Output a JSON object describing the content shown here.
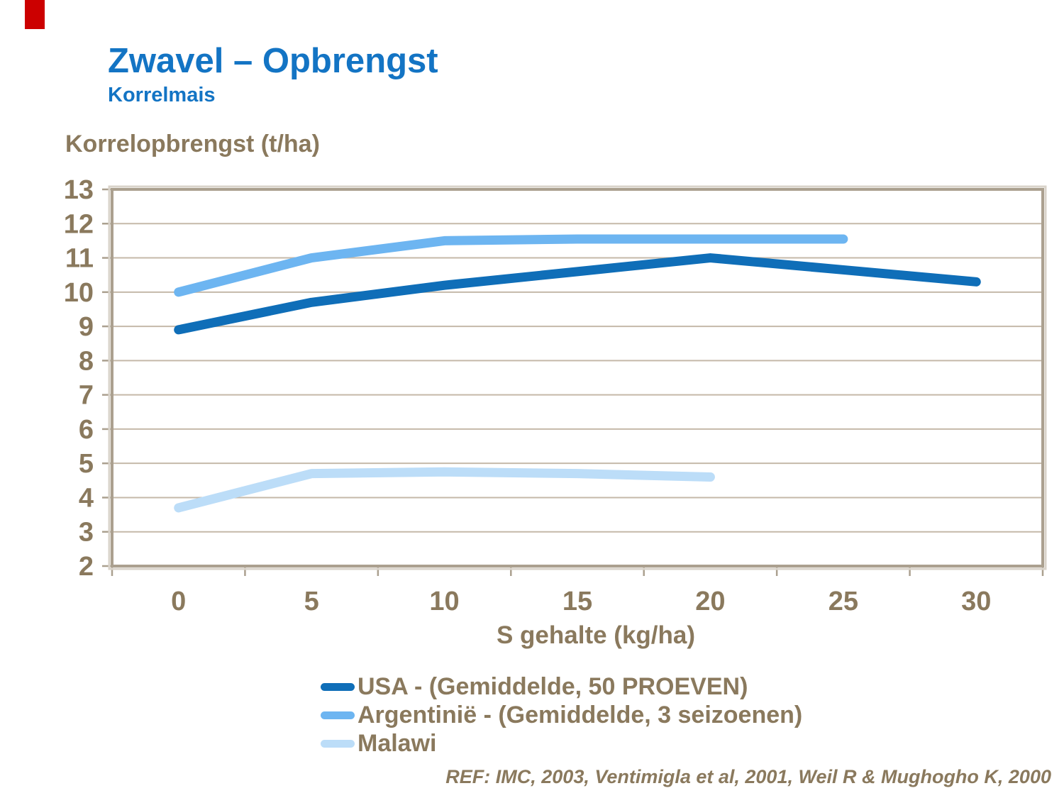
{
  "slide": {
    "title": "Zwavel – Opbrengst",
    "subtitle": "Korrelmais",
    "reference": "REF: IMC, 2003, Ventimigla et al, 2001, Weil R & Mughogho K, 2000",
    "logo_color": "#cc0000",
    "title_color": "#1374c4",
    "text_color": "#8a795d"
  },
  "chart_data": {
    "type": "line",
    "title": "",
    "y_axis_title": "Korrelopbrengst (t/ha)",
    "x_axis_title": "S gehalte (kg/ha)",
    "xlabel": "S gehalte (kg/ha)",
    "ylabel": "Korrelopbrengst (t/ha)",
    "xticks": [
      0,
      5,
      10,
      15,
      20,
      25,
      30
    ],
    "yticks": [
      2,
      3,
      4,
      5,
      6,
      7,
      8,
      9,
      10,
      11,
      12,
      13
    ],
    "ylim": [
      2,
      13
    ],
    "grid": "horizontal",
    "legend_position": "bottom",
    "axis_color": "#aba08f",
    "axis_outer_color": "#d9d3ca",
    "gridline_color": "#c5b9a9",
    "series": [
      {
        "name": "USA - (Gemiddelde, 50 PROEVEN)",
        "color": "#0f6eb8",
        "x": [
          0,
          5,
          10,
          15,
          20,
          25,
          30
        ],
        "values": [
          8.9,
          9.7,
          10.2,
          10.6,
          11.0,
          10.65,
          10.3
        ]
      },
      {
        "name": "Argentinië - (Gemiddelde, 3 seizoenen)",
        "color": "#6db5f1",
        "x": [
          0,
          5,
          10,
          15,
          20,
          25
        ],
        "values": [
          10.0,
          11.0,
          11.5,
          11.55,
          11.55,
          11.55
        ]
      },
      {
        "name": "Malawi",
        "color": "#bcddf8",
        "x": [
          0,
          5,
          10,
          15,
          20
        ],
        "values": [
          3.7,
          4.7,
          4.75,
          4.7,
          4.6
        ]
      }
    ]
  }
}
